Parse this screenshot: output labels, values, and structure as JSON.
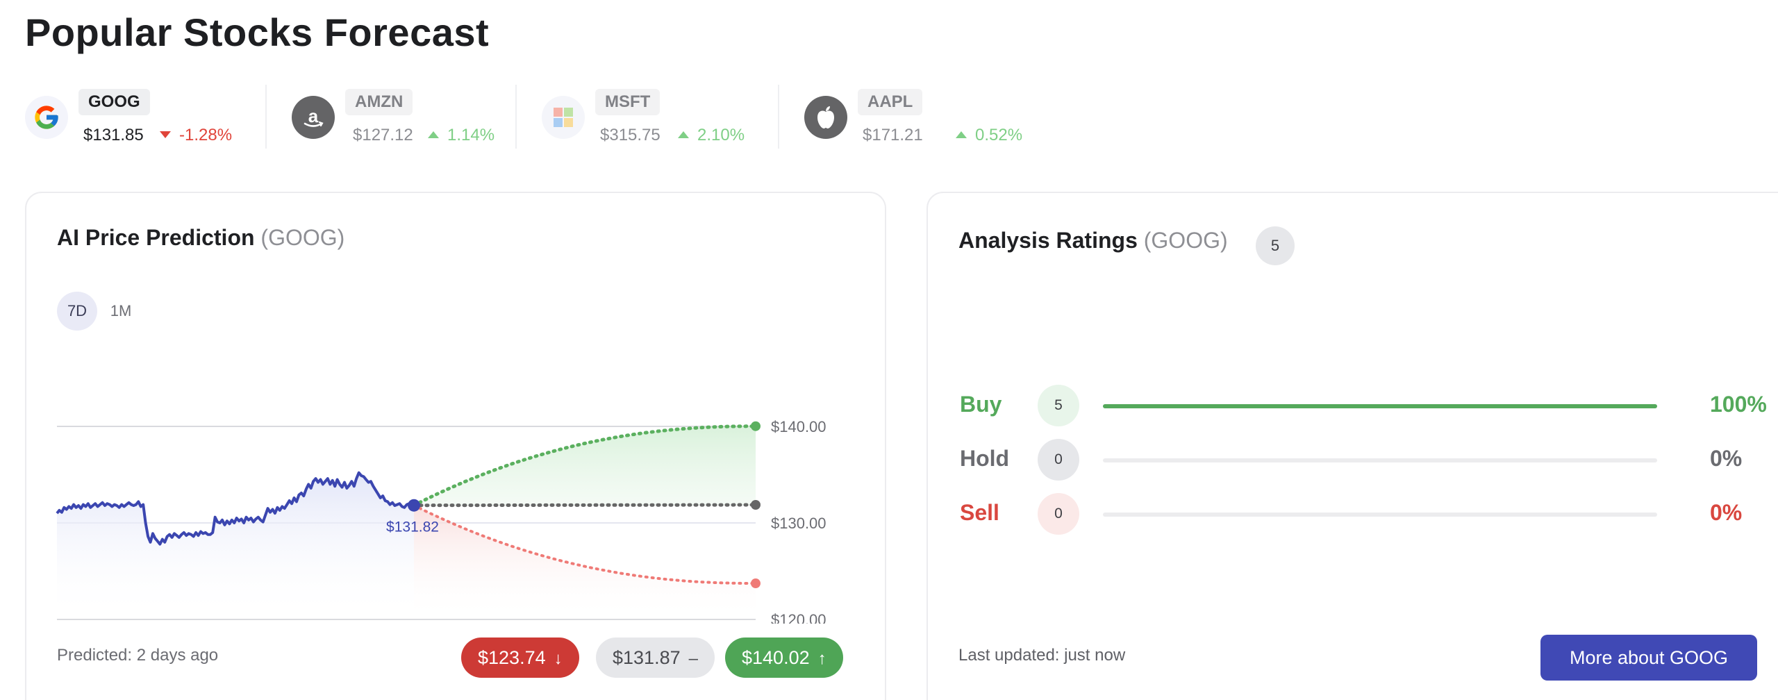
{
  "page": {
    "title": "Popular Stocks Forecast"
  },
  "colors": {
    "accent": "#4049b5",
    "up": "#4fa556",
    "down": "#cd3a35",
    "up_light": "#7fcf86",
    "down_text": "#e0443a",
    "history_line": "#3b46b0"
  },
  "tickers": [
    {
      "symbol": "GOOG",
      "price": "$131.85",
      "change": "-1.28%",
      "direction": "down",
      "icon": "google-icon",
      "active": true
    },
    {
      "symbol": "AMZN",
      "price": "$127.12",
      "change": "1.14%",
      "direction": "up",
      "icon": "amazon-icon",
      "active": false
    },
    {
      "symbol": "MSFT",
      "price": "$315.75",
      "change": "2.10%",
      "direction": "up",
      "icon": "microsoft-icon",
      "active": false
    },
    {
      "symbol": "AAPL",
      "price": "$171.21",
      "change": "0.52%",
      "direction": "up",
      "icon": "apple-icon",
      "active": false
    }
  ],
  "prediction": {
    "title": "AI Price Prediction",
    "ticker_paren": "(GOOG)",
    "ranges": [
      "7D",
      "1M"
    ],
    "selected_range": "7D",
    "predicted_label": "Predicted: 2 days ago",
    "low": {
      "value": "$123.74",
      "arrow": "↓"
    },
    "avg": {
      "value": "$131.87",
      "arrow": "–"
    },
    "high": {
      "value": "$140.02",
      "arrow": "↑"
    }
  },
  "chart_data": {
    "type": "line",
    "y_ticks": [
      "$140.00",
      "$130.00",
      "$120.00"
    ],
    "ylim": [
      120,
      140
    ],
    "current_label": "$131.82",
    "current_value": 131.82,
    "history": {
      "values": [
        131.0,
        131.3,
        131.1,
        131.6,
        131.4,
        131.7,
        131.5,
        131.9,
        131.6,
        131.8,
        131.5,
        131.9,
        131.7,
        132.0,
        131.6,
        131.8,
        132.0,
        131.7,
        131.9,
        132.1,
        131.8,
        132.0,
        131.9,
        131.7,
        131.9,
        131.8,
        131.6,
        131.9,
        131.7,
        131.9,
        132.1,
        131.9,
        131.8,
        131.9,
        132.2,
        131.7,
        131.9,
        130.0,
        128.6,
        128.0,
        128.9,
        128.4,
        128.1,
        127.8,
        128.3,
        128.0,
        128.6,
        128.8,
        128.5,
        128.9,
        128.7,
        128.5,
        128.8,
        129.0,
        128.7,
        128.9,
        128.8,
        128.6,
        129.0,
        128.7,
        129.1,
        128.9,
        129.0,
        128.8,
        128.8,
        129.0,
        130.6,
        130.1,
        130.0,
        130.3,
        129.8,
        130.2,
        129.9,
        130.3,
        130.0,
        130.5,
        130.2,
        130.4,
        130.0,
        130.6,
        130.3,
        130.5,
        130.1,
        130.4,
        130.6,
        130.3,
        130.1,
        130.8,
        131.5,
        131.1,
        131.4,
        131.0,
        131.6,
        131.3,
        131.7,
        131.5,
        131.9,
        132.3,
        132.0,
        132.6,
        132.2,
        132.9,
        133.1,
        132.8,
        133.5,
        134.0,
        133.6,
        134.3,
        134.6,
        134.2,
        134.5,
        134.0,
        134.3,
        134.6,
        134.0,
        134.4,
        133.8,
        134.5,
        134.0,
        133.7,
        134.2,
        133.6,
        133.9,
        134.3,
        133.8,
        134.6,
        135.2,
        134.9,
        134.8,
        134.5,
        134.2,
        134.3,
        133.8,
        133.4,
        133.0,
        132.6,
        132.8,
        132.3,
        132.2,
        131.9,
        132.1,
        131.8,
        131.9,
        132.0,
        131.7,
        131.6,
        131.9,
        132.0,
        132.1,
        131.8
      ]
    },
    "forecast": {
      "high": {
        "start": 131.82,
        "end": 140.02,
        "color": "#5bb05f"
      },
      "avg": {
        "start": 131.82,
        "end": 131.87,
        "color": "#666666"
      },
      "low": {
        "start": 131.82,
        "end": 123.74,
        "color": "#ef7a76"
      }
    },
    "grid": true
  },
  "ratings": {
    "title": "Analysis Ratings",
    "ticker_paren": "(GOOG)",
    "total": "5",
    "rows": [
      {
        "label": "Buy",
        "count": "5",
        "percent": "100%",
        "fraction": 1.0,
        "color": "#54a95b",
        "badge_bg": "#e8f5ea"
      },
      {
        "label": "Hold",
        "count": "0",
        "percent": "0%",
        "fraction": 0.0,
        "color": "#6a6b70",
        "badge_bg": "#e6e7ea"
      },
      {
        "label": "Sell",
        "count": "0",
        "percent": "0%",
        "fraction": 0.0,
        "color": "#d9473f",
        "badge_bg": "#fbe9e8"
      }
    ],
    "updated_label": "Last updated: just now",
    "more_button": "More about GOOG"
  }
}
